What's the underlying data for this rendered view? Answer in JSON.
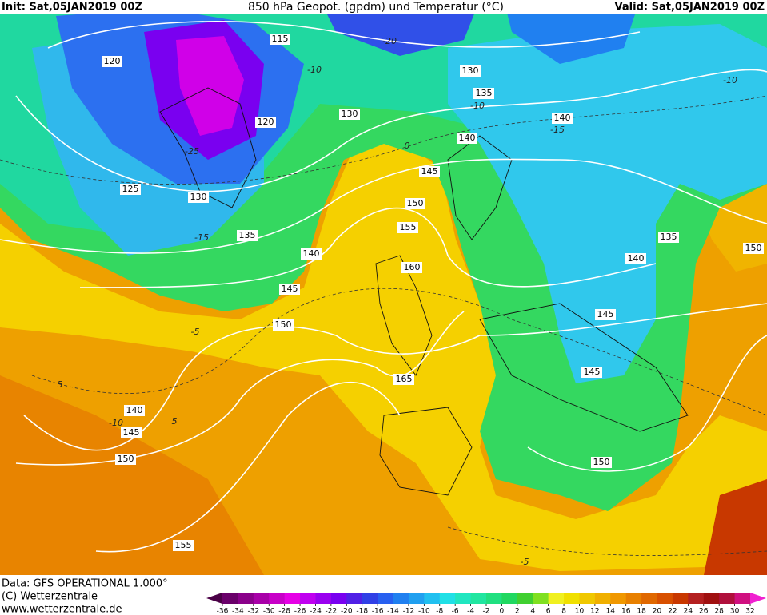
{
  "header": {
    "init": "Init: Sat,05JAN2019 00Z",
    "title": "850 hPa Geopot. (gpdm) und Temperatur (°C)",
    "valid": "Valid: Sat,05JAN2019 00Z"
  },
  "footer": [
    "Data: GFS OPERATIONAL 1.000°",
    "(C) Wetterzentrale",
    "www.wetterzentrale.de"
  ],
  "contour_labels": [
    115,
    120,
    120,
    125,
    130,
    130,
    130,
    135,
    135,
    135,
    140,
    140,
    140,
    140,
    140,
    145,
    145,
    145,
    145,
    145,
    150,
    150,
    150,
    150,
    150,
    155,
    155,
    160,
    165
  ],
  "isotherm_labels": [
    -20,
    -10,
    -10,
    -15,
    -10,
    0,
    -5,
    -5,
    5,
    -10,
    -15,
    5,
    -25
  ],
  "colorbar": {
    "ticks": [
      -36,
      -34,
      -32,
      -30,
      -28,
      -26,
      -24,
      -22,
      -20,
      -18,
      -16,
      -14,
      -12,
      -10,
      -8,
      -6,
      -4,
      -2,
      0,
      2,
      4,
      6,
      8,
      10,
      12,
      14,
      16,
      18,
      20,
      22,
      24,
      26,
      28,
      30,
      32
    ],
    "colors": [
      "#4a0046",
      "#6a006a",
      "#8a008a",
      "#a800a8",
      "#c800c8",
      "#e600e6",
      "#c000f0",
      "#9a00f0",
      "#7800f0",
      "#5020e6",
      "#3040e6",
      "#2860f0",
      "#2080f0",
      "#20a0f0",
      "#20c0f0",
      "#20e0e6",
      "#20e6c0",
      "#20e6a0",
      "#20e080",
      "#20d860",
      "#40d030",
      "#80e020",
      "#f0f020",
      "#f0e000",
      "#f0c800",
      "#f0b000",
      "#f09800",
      "#e88000",
      "#e06800",
      "#d85000",
      "#c83800",
      "#b42020",
      "#a01010",
      "#b0103c",
      "#d01080",
      "#f020d0"
    ]
  }
}
